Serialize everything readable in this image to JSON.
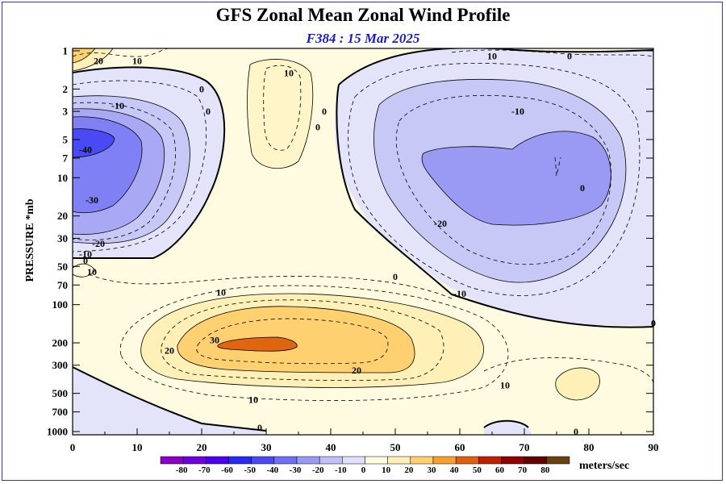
{
  "chart_data": {
    "type": "contour",
    "title": "GFS Zonal Mean Zonal Wind Profile",
    "subtitle": "F384 : 15 Mar 2025",
    "xlabel": "",
    "ylabel": "PRESSURE *mb",
    "xlim": [
      0,
      90
    ],
    "x_ticks": [
      0,
      10,
      20,
      30,
      40,
      50,
      60,
      70,
      80,
      90
    ],
    "y_scale": "log",
    "ylim": [
      1000,
      1
    ],
    "y_ticks": [
      1,
      2,
      3,
      5,
      7,
      10,
      20,
      30,
      50,
      70,
      100,
      200,
      300,
      500,
      700,
      1000
    ],
    "colorbar": {
      "units": "meters/sec",
      "levels": [
        -80,
        -70,
        -60,
        -50,
        -40,
        -30,
        -20,
        -10,
        0,
        10,
        20,
        30,
        40,
        50,
        60,
        70,
        80
      ],
      "colors": [
        "#8a00c8",
        "#6f00e0",
        "#4b00f0",
        "#2a2af5",
        "#4a4af5",
        "#7070f5",
        "#9a9af5",
        "#c0c0f7",
        "#e0e0fa",
        "#fffae0",
        "#fff0b8",
        "#ffd070",
        "#f5a030",
        "#e06010",
        "#c02000",
        "#900000",
        "#600000",
        "#6b4010"
      ]
    },
    "contour_labels": [
      {
        "value": "20",
        "lon": 4,
        "p": 1.2
      },
      {
        "value": "10",
        "lon": 10,
        "p": 1.2
      },
      {
        "value": "-10",
        "lon": 7,
        "p": 2.7
      },
      {
        "value": "-40",
        "lon": 2,
        "p": 6
      },
      {
        "value": "-30",
        "lon": 3,
        "p": 15
      },
      {
        "value": "-20",
        "lon": 4,
        "p": 33
      },
      {
        "value": "-10",
        "lon": 2,
        "p": 40
      },
      {
        "value": "0",
        "lon": 2,
        "p": 45
      },
      {
        "value": "10",
        "lon": 3,
        "p": 55
      },
      {
        "value": "0",
        "lon": 20,
        "p": 2
      },
      {
        "value": "0",
        "lon": 21,
        "p": 3
      },
      {
        "value": "10",
        "lon": 33.5,
        "p": 1.5
      },
      {
        "value": "0",
        "lon": 38,
        "p": 4
      },
      {
        "value": "0",
        "lon": 39,
        "p": 3
      },
      {
        "value": "10",
        "lon": 65,
        "p": 1.1
      },
      {
        "value": "0",
        "lon": 77,
        "p": 1.1
      },
      {
        "value": "-10",
        "lon": 69,
        "p": 3
      },
      {
        "value": "-20",
        "lon": 57,
        "p": 23
      },
      {
        "value": "0",
        "lon": 79,
        "p": 12
      },
      {
        "value": "0",
        "lon": 50,
        "p": 60
      },
      {
        "value": "-10",
        "lon": 60,
        "p": 82
      },
      {
        "value": "10",
        "lon": 23,
        "p": 80
      },
      {
        "value": "30",
        "lon": 22,
        "p": 190
      },
      {
        "value": "20",
        "lon": 15,
        "p": 230
      },
      {
        "value": "20",
        "lon": 44,
        "p": 330
      },
      {
        "value": "10",
        "lon": 28,
        "p": 560
      },
      {
        "value": "10",
        "lon": 67,
        "p": 430
      },
      {
        "value": "0",
        "lon": 29,
        "p": 930
      },
      {
        "value": "0",
        "lon": 78,
        "p": 1000
      },
      {
        "value": "0",
        "lon": 90,
        "p": 140
      }
    ]
  }
}
